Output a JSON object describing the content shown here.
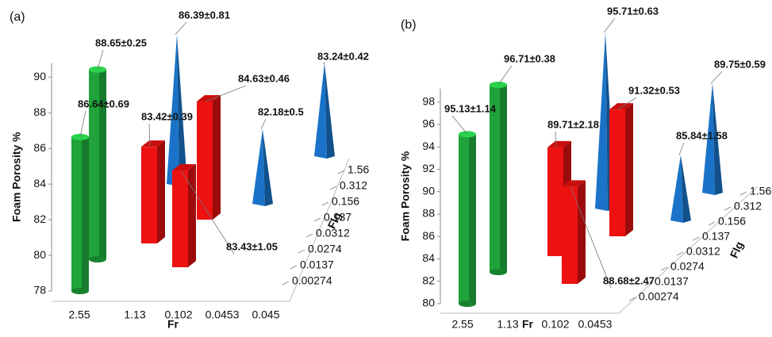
{
  "chart_data": [
    {
      "type": "bar3d",
      "panel_label": "(a)",
      "y_label": "Foam Porosity %",
      "x_label": "Fr",
      "z_label": "Flg",
      "x_categories": [
        "2.55",
        "1.13",
        "0.102",
        "0.0453",
        "0.045"
      ],
      "z_categories": [
        "0.00274",
        "0.0137",
        "0.0274",
        "0.0312",
        "0.137",
        "0.156",
        "0.312",
        "1.56"
      ],
      "ylim": [
        78,
        90.8
      ],
      "yticks": [
        78,
        80,
        82,
        84,
        86,
        88,
        90
      ],
      "series": [
        {
          "shape": "cylinder",
          "color": "#1fa33a",
          "values": [
            86.64,
            88.65
          ],
          "value_labels": [
            "86.64±0.69",
            "88.65±0.25"
          ]
        },
        {
          "shape": "box",
          "color": "#ee1111",
          "values": [
            83.42,
            83.43,
            84.63
          ],
          "value_labels": [
            "83.42±0.39",
            "83.43±1.05",
            "84.63±0.46"
          ]
        },
        {
          "shape": "cone",
          "color": "#1a73c8",
          "values": [
            86.39,
            82.18,
            83.24
          ],
          "value_labels": [
            "86.39±0.81",
            "82.18±0.5",
            "83.24±0.42"
          ]
        }
      ]
    },
    {
      "type": "bar3d",
      "panel_label": "(b)",
      "y_label": "Foam Porosity %",
      "x_label": "Fr",
      "z_label": "Flg",
      "x_categories": [
        "2.55",
        "1.13",
        "0.102",
        "0.0453"
      ],
      "z_categories": [
        "0.00274",
        "0.0137",
        "0.0274",
        "0.0312",
        "0.137",
        "0.156",
        "0.312",
        "1.56"
      ],
      "ylim": [
        80,
        99.2
      ],
      "yticks": [
        80,
        82,
        84,
        86,
        88,
        90,
        92,
        94,
        96,
        98
      ],
      "series": [
        {
          "shape": "cylinder",
          "color": "#1fa33a",
          "values": [
            95.13,
            96.71
          ],
          "value_labels": [
            "95.13±1.14",
            "96.71±0.38"
          ]
        },
        {
          "shape": "box",
          "color": "#ee1111",
          "values": [
            89.71,
            88.68,
            91.32
          ],
          "value_labels": [
            "89.71±2.18",
            "88.68±2.47",
            "91.32±0.53"
          ]
        },
        {
          "shape": "cone",
          "color": "#1a73c8",
          "values": [
            95.71,
            85.84,
            89.75
          ],
          "value_labels": [
            "95.71±0.63",
            "85.84±1.58",
            "89.75±0.59"
          ]
        }
      ]
    }
  ]
}
